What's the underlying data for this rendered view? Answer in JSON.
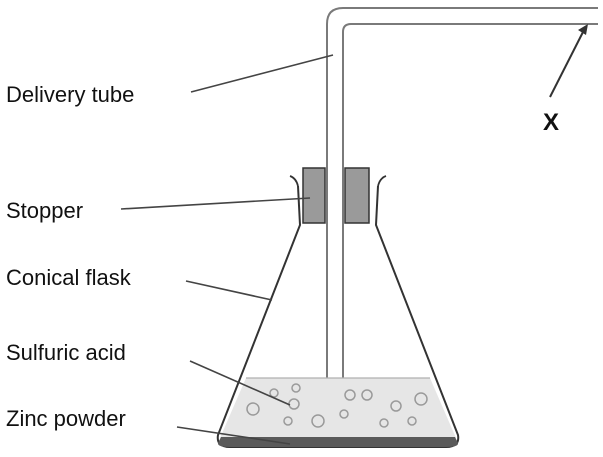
{
  "labels": {
    "delivery_tube": "Delivery tube",
    "stopper": "Stopper",
    "conical_flask": "Conical flask",
    "sulfuric_acid": "Sulfuric acid",
    "zinc_powder": "Zinc powder",
    "x_marker": "X"
  },
  "colors": {
    "line": "#333333",
    "tube_outline": "#7a7a7a",
    "stopper_fill": "#9a9a9a",
    "acid_fill": "#e6e6e6",
    "bubble": "#9a9a9a",
    "zinc_fill": "#5a5a5a"
  }
}
